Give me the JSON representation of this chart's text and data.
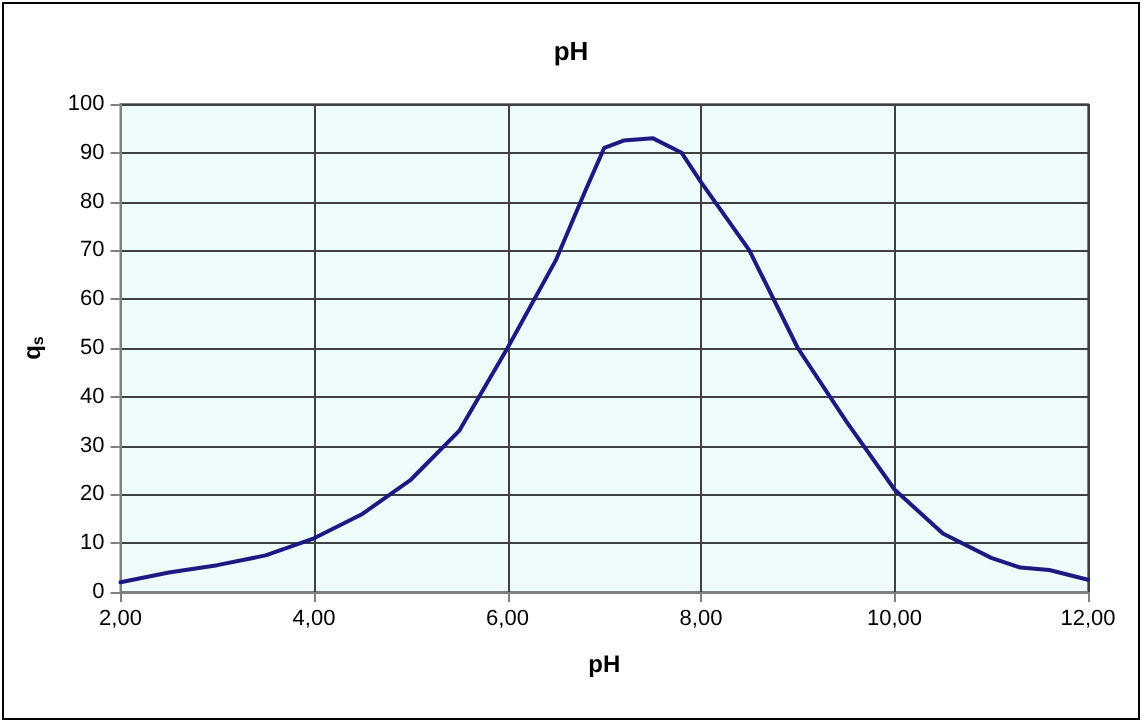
{
  "chart_data": {
    "type": "line",
    "title": "pH",
    "xlabel": "pH",
    "ylabel": "q$_{s}$",
    "x": [
      2.0,
      2.5,
      3.0,
      3.5,
      4.0,
      4.5,
      5.0,
      5.5,
      6.0,
      6.5,
      6.8,
      7.0,
      7.2,
      7.5,
      7.8,
      8.0,
      8.5,
      9.0,
      9.5,
      10.0,
      10.5,
      11.0,
      11.3,
      11.6,
      12.0
    ],
    "series": [
      {
        "color": "#1a1a80",
        "values": [
          2,
          4,
          5.5,
          7.5,
          11,
          16,
          23,
          33,
          50,
          68,
          82,
          91,
          92.5,
          93,
          90,
          84,
          70,
          50,
          35,
          21,
          12,
          7,
          5,
          4.5,
          2.5
        ]
      }
    ],
    "xlim": [
      2,
      12
    ],
    "xticks": [
      {
        "value": 2,
        "label": "2,00"
      },
      {
        "value": 4,
        "label": "4,00"
      },
      {
        "value": 6,
        "label": "6,00"
      },
      {
        "value": 8,
        "label": "8,00"
      },
      {
        "value": 10,
        "label": "10,00"
      },
      {
        "value": 12,
        "label": "12,00"
      }
    ],
    "ylim": [
      0,
      100
    ],
    "yticks": [
      0,
      10,
      20,
      30,
      40,
      50,
      60,
      70,
      80,
      90,
      100
    ],
    "grid": true,
    "marker": "none",
    "line_style": "solid"
  }
}
